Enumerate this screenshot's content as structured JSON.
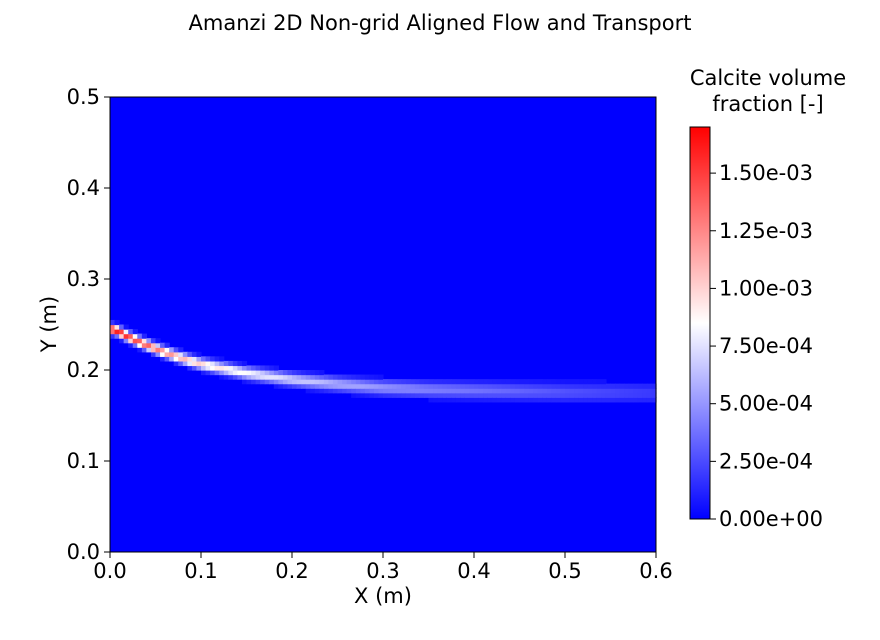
{
  "chart_data": {
    "type": "heatmap",
    "title": "Amanzi 2D Non-grid Aligned Flow and Transport",
    "xlabel": "X (m)",
    "ylabel": "Y (m)",
    "xlim": [
      0.0,
      0.6
    ],
    "ylim": [
      0.0,
      0.5
    ],
    "x_ticks": [
      "0.0",
      "0.1",
      "0.2",
      "0.3",
      "0.4",
      "0.5",
      "0.6"
    ],
    "y_ticks": [
      "0.0",
      "0.1",
      "0.2",
      "0.3",
      "0.4",
      "0.5"
    ],
    "grid": false,
    "colorbar": {
      "label_line1": "Calcite volume",
      "label_line2": "fraction [-]",
      "range": [
        0.0,
        0.0017
      ],
      "colormap": "bwr",
      "colors": {
        "low": "#0000ff",
        "mid": "#ffffff",
        "high": "#ff0000"
      },
      "ticks": [
        {
          "value": 0.0,
          "label": "0.00e+00"
        },
        {
          "value": 0.00025,
          "label": "2.50e-04"
        },
        {
          "value": 0.0005,
          "label": "5.00e-04"
        },
        {
          "value": 0.00075,
          "label": "7.50e-04"
        },
        {
          "value": 0.001,
          "label": "1.00e-03"
        },
        {
          "value": 0.00125,
          "label": "1.25e-03"
        },
        {
          "value": 0.0015,
          "label": "1.50e-03"
        }
      ]
    },
    "plume_centerline": {
      "x": [
        0.005,
        0.02,
        0.04,
        0.06,
        0.08,
        0.1,
        0.15,
        0.2,
        0.25,
        0.3,
        0.35,
        0.4,
        0.5,
        0.6
      ],
      "y": [
        0.245,
        0.237,
        0.228,
        0.22,
        0.213,
        0.207,
        0.197,
        0.19,
        0.185,
        0.181,
        0.179,
        0.178,
        0.176,
        0.175
      ],
      "peak_value": [
        0.0017,
        0.00155,
        0.0014,
        0.00125,
        0.0011,
        0.001,
        0.00085,
        0.0007,
        0.00058,
        0.0005,
        0.00043,
        0.00038,
        0.00028,
        0.0002
      ]
    }
  }
}
